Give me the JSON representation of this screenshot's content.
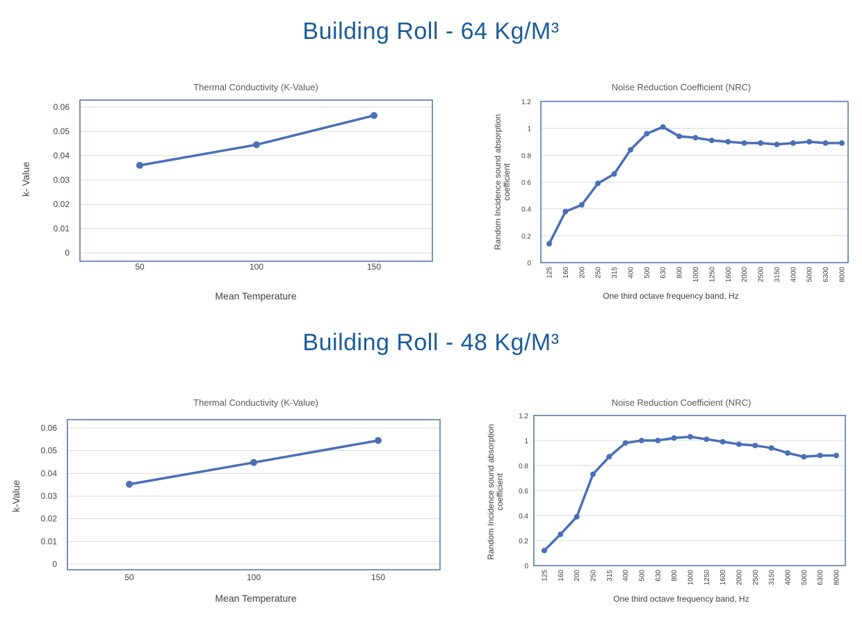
{
  "colors": {
    "title": "#1a5c9a",
    "series": "#4a6fb7",
    "frame": "#4a6fa9",
    "grid": "#d9d9d9"
  },
  "sections": [
    {
      "heading": "Building Roll - 64 Kg/M³"
    },
    {
      "heading": "Building Roll - 48 Kg/M³"
    }
  ],
  "chart_data": [
    {
      "type": "line",
      "title": "Thermal Conductivity (K-Value)",
      "xlabel": "Mean Temperature",
      "ylabel": "k- Value",
      "categories": [
        "50",
        "100",
        "150"
      ],
      "values": [
        0.036,
        0.0445,
        0.0565
      ],
      "ylim": [
        0,
        0.06
      ],
      "yticks": [
        "0",
        "0.01",
        "0.02",
        "0.03",
        "0.04",
        "0.05",
        "0.06"
      ],
      "grid": true
    },
    {
      "type": "line",
      "title": "Noise Reduction Coefficient (NRC)",
      "xlabel": "One third octave frequency band, Hz",
      "ylabel": "Random Incidence sound absorption coefficient",
      "categories": [
        "125",
        "160",
        "200",
        "250",
        "315",
        "400",
        "500",
        "630",
        "800",
        "1000",
        "1250",
        "1600",
        "2000",
        "2500",
        "3150",
        "4000",
        "5000",
        "6300",
        "8000"
      ],
      "values": [
        0.14,
        0.38,
        0.43,
        0.59,
        0.66,
        0.84,
        0.96,
        1.01,
        0.94,
        0.93,
        0.91,
        0.9,
        0.89,
        0.89,
        0.88,
        0.89,
        0.9,
        0.89,
        0.89
      ],
      "ylim": [
        0,
        1.2
      ],
      "yticks": [
        "0",
        "0.2",
        "0.4",
        "0.6",
        "0.8",
        "1",
        "1.2"
      ],
      "grid": true
    },
    {
      "type": "line",
      "title": "Thermal Conductivity (K-Value)",
      "xlabel": "Mean Temperature",
      "ylabel": "k-Value",
      "categories": [
        "50",
        "100",
        "150"
      ],
      "values": [
        0.0352,
        0.0448,
        0.0545
      ],
      "ylim": [
        0,
        0.06
      ],
      "yticks": [
        "0",
        "0.01",
        "0.02",
        "0.03",
        "0.04",
        "0.05",
        "0.06"
      ],
      "grid": true
    },
    {
      "type": "line",
      "title": "Noise Reduction Coefficient (NRC)",
      "xlabel": "One third octave frequency band, Hz",
      "ylabel": "Random Incidence sound absorption coefficient",
      "categories": [
        "125",
        "160",
        "200",
        "250",
        "315",
        "400",
        "500",
        "630",
        "800",
        "1000",
        "1250",
        "1600",
        "2000",
        "2500",
        "3150",
        "4000",
        "5000",
        "6300",
        "8000"
      ],
      "values": [
        0.12,
        0.25,
        0.39,
        0.73,
        0.87,
        0.98,
        1.0,
        1.0,
        1.02,
        1.03,
        1.01,
        0.99,
        0.97,
        0.96,
        0.94,
        0.9,
        0.87,
        0.88,
        0.88
      ],
      "ylim": [
        0,
        1.2
      ],
      "yticks": [
        "0",
        "0.2",
        "0.4",
        "0.6",
        "0.8",
        "1",
        "1.2"
      ],
      "grid": true
    }
  ]
}
